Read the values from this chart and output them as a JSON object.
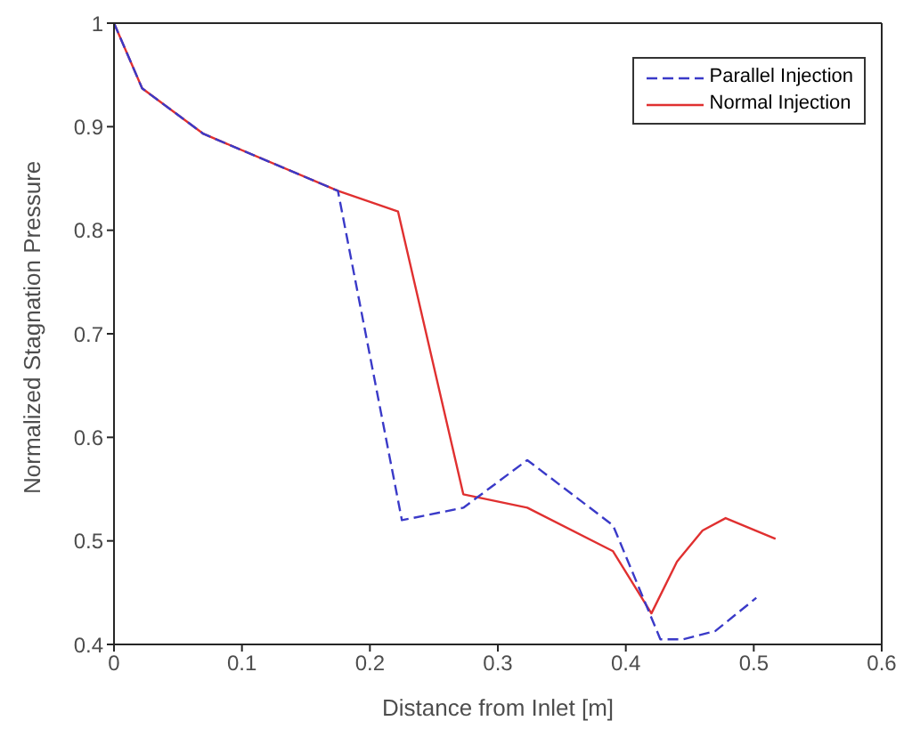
{
  "chart_data": {
    "type": "line",
    "xlabel": "Distance from Inlet [m]",
    "ylabel": "Normalized Stagnation Pressure",
    "xlim": [
      0,
      0.6
    ],
    "xticks": [
      0,
      0.1,
      0.2,
      0.3,
      0.4,
      0.5,
      0.6
    ],
    "ylim": [
      0.4,
      1
    ],
    "yticks": [
      0.4,
      0.5,
      0.6,
      0.7,
      0.8,
      0.9,
      1
    ],
    "legend": "top right",
    "marker": "none",
    "series": [
      {
        "name": "Parallel Injection",
        "color": "#3a3ac8",
        "line_style": "dashed",
        "x": [
          0,
          0.022,
          0.07,
          0.175,
          0.225,
          0.273,
          0.323,
          0.39,
          0.427,
          0.445,
          0.47,
          0.502
        ],
        "values": [
          1,
          0.937,
          0.893,
          0.838,
          0.52,
          0.532,
          0.578,
          0.515,
          0.405,
          0.405,
          0.413,
          0.445
        ]
      },
      {
        "name": "Normal Injection",
        "color": "#e03030",
        "line_style": "solid",
        "x": [
          0,
          0.022,
          0.07,
          0.175,
          0.222,
          0.273,
          0.323,
          0.39,
          0.42,
          0.44,
          0.46,
          0.478,
          0.517
        ],
        "values": [
          1,
          0.937,
          0.893,
          0.838,
          0.818,
          0.545,
          0.532,
          0.49,
          0.43,
          0.48,
          0.51,
          0.522,
          0.502
        ]
      }
    ]
  }
}
